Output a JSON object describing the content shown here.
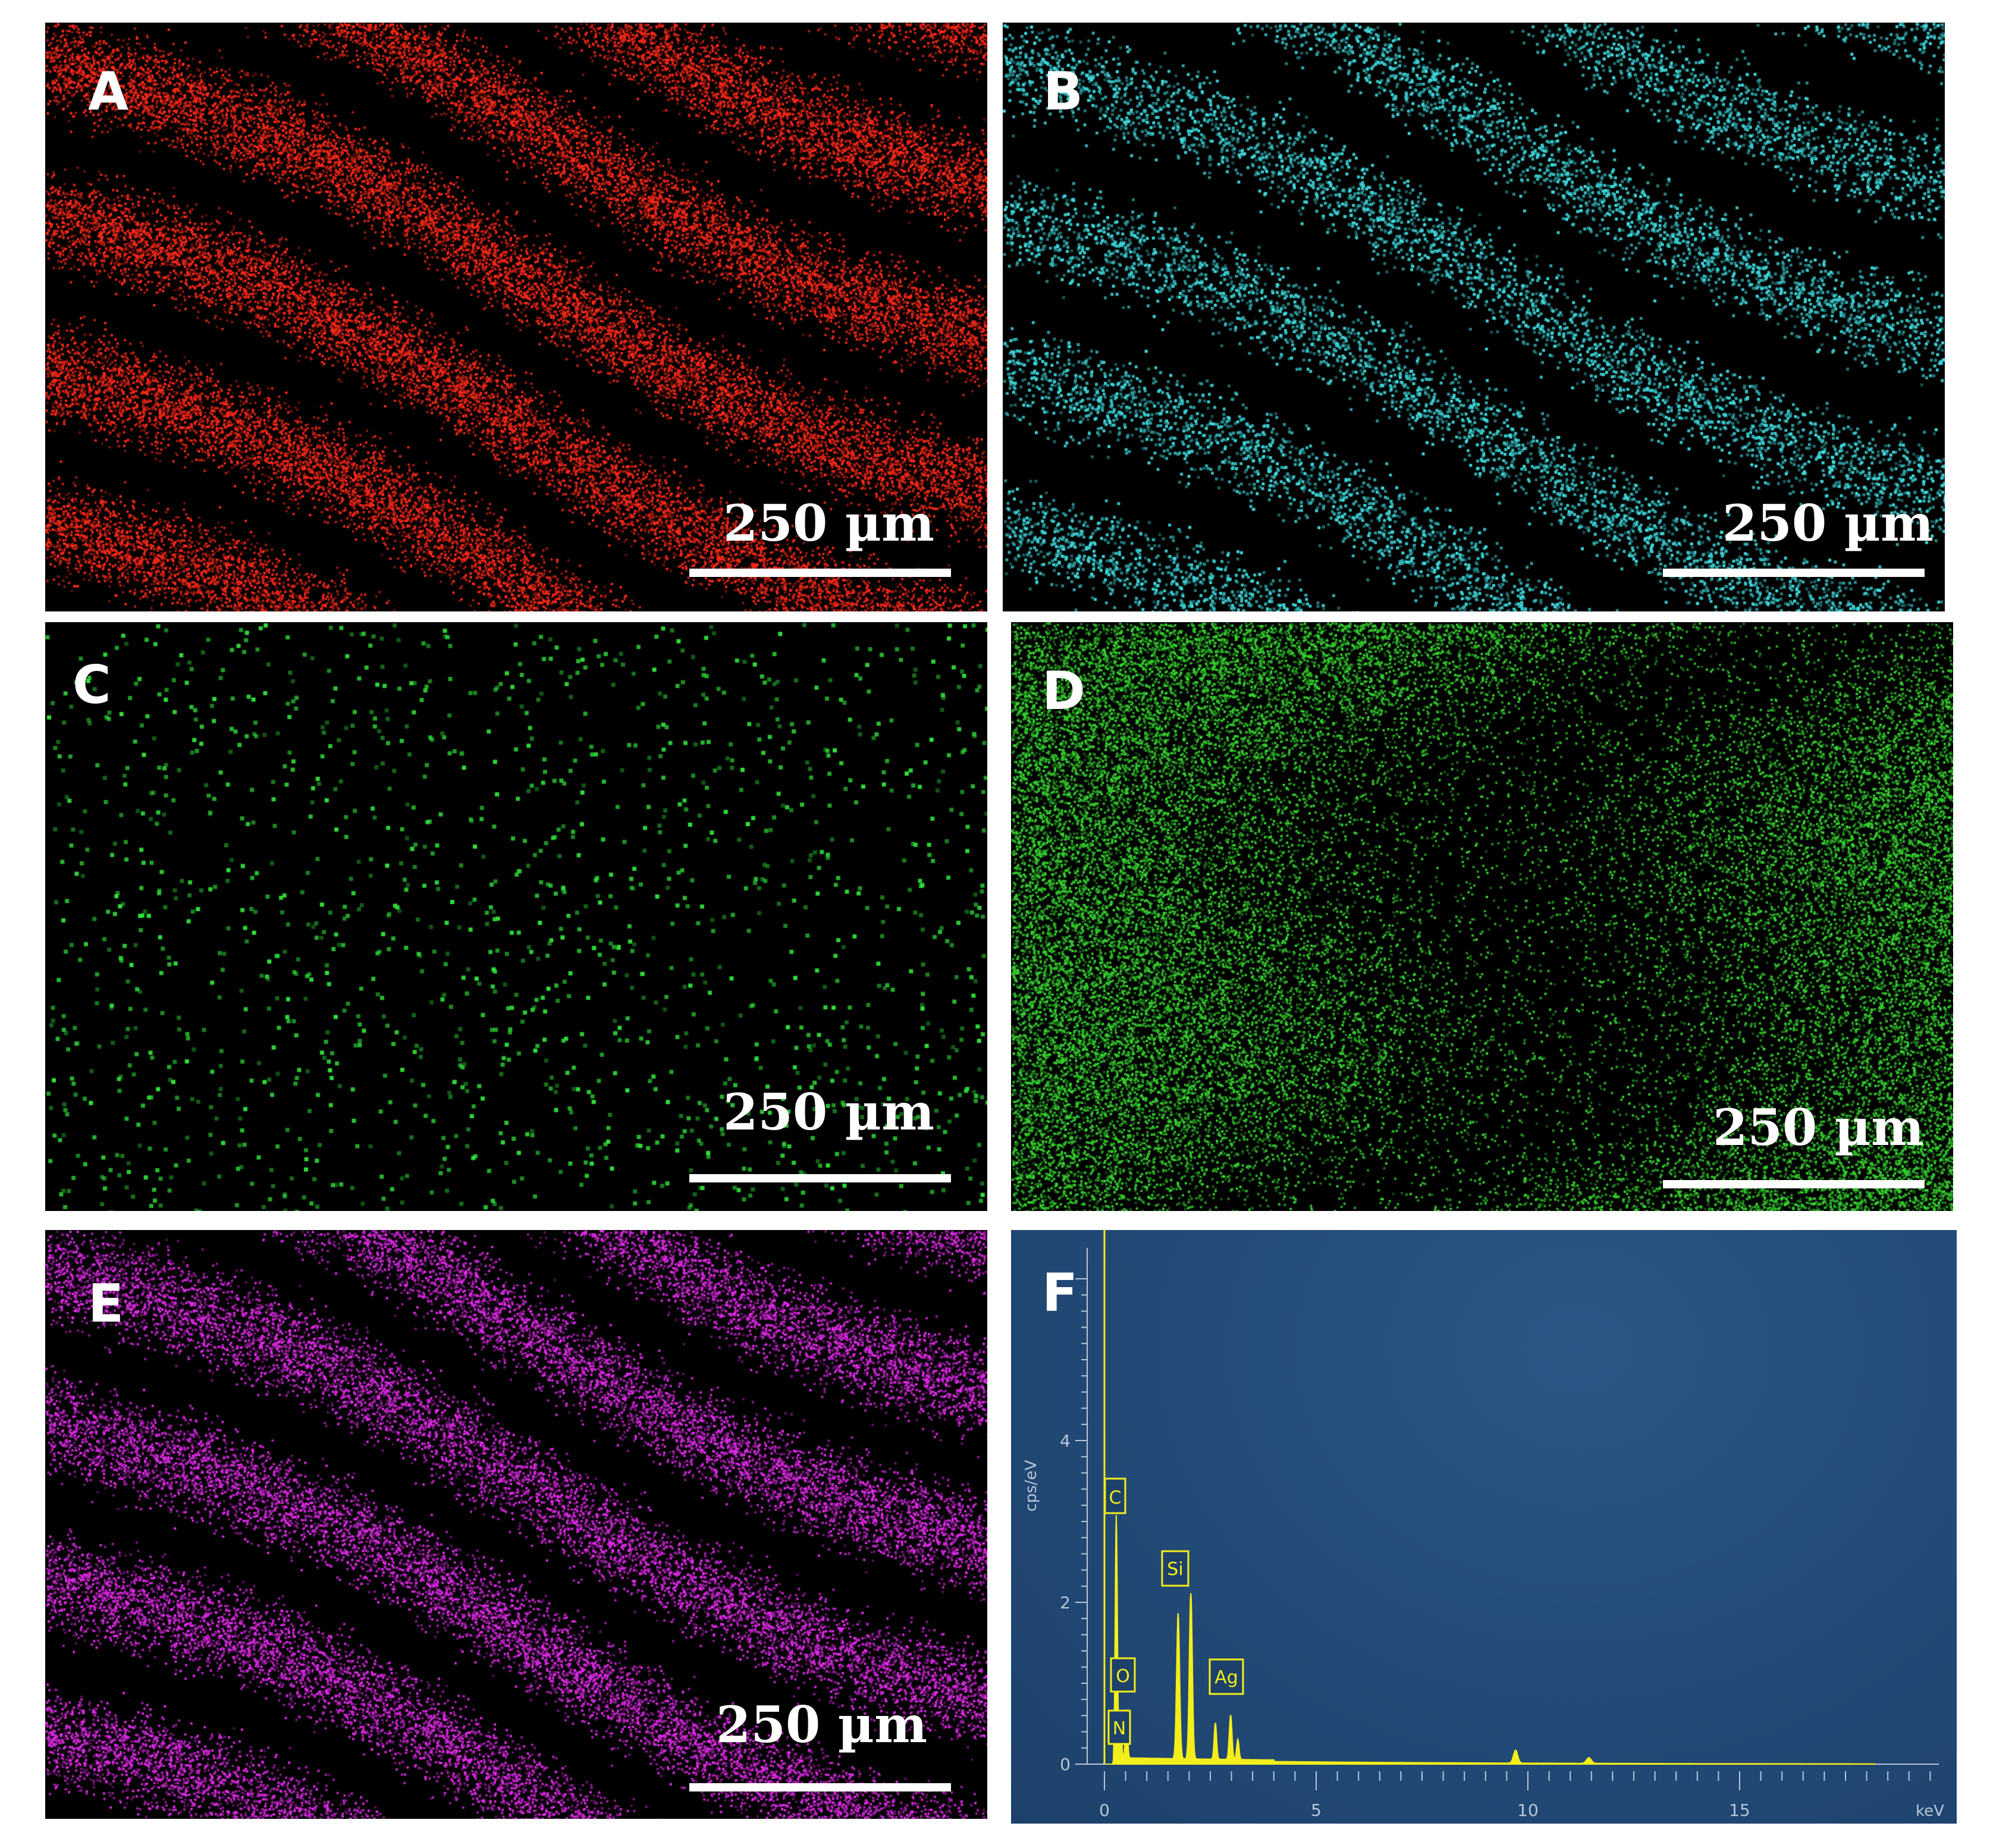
{
  "panels": [
    {
      "label": "A",
      "scale_text": "250 µm",
      "color": "#ff2a1a",
      "pattern": "stripes",
      "density": 0.55
    },
    {
      "label": "B",
      "scale_text": "250 µm",
      "color": "#3fd8dc",
      "pattern": "stripes-dots",
      "density": 0.22
    },
    {
      "label": "C",
      "scale_text": "250 µm",
      "color": "#2fe23a",
      "pattern": "sparse",
      "density": 0.012
    },
    {
      "label": "D",
      "scale_text": "250 µm",
      "color": "#37d130",
      "pattern": "dense",
      "density": 0.5
    },
    {
      "label": "E",
      "scale_text": "250 µm",
      "color": "#e02be8",
      "pattern": "stripes",
      "density": 0.5
    }
  ],
  "spectrum": {
    "label": "F",
    "ylabel": "cps/eV",
    "xlabel": "keV",
    "x_ticks": [
      "0",
      "5",
      "10",
      "15"
    ],
    "y_ticks": [
      "0",
      "2",
      "4"
    ],
    "colors": {
      "background": "#224a76",
      "trace": "#f4ee1a",
      "axis": "#b8c7d8"
    },
    "peak_labels": [
      "C",
      "O",
      "N",
      "Si",
      "Ag"
    ]
  }
}
